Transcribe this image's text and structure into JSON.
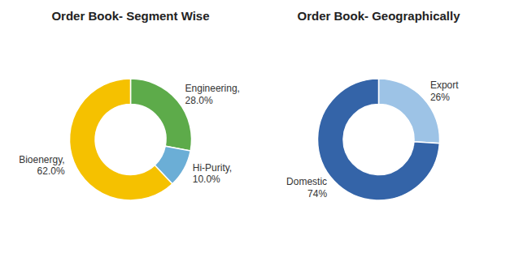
{
  "chart_data": [
    {
      "type": "pie",
      "title": "Order Book- Segment Wise",
      "categories": [
        "Engineering,\n28.0%",
        "Hi-Purity,\n10.0%",
        "Bioenergy,\n62.0%"
      ],
      "values": [
        28.0,
        10.0,
        62.0
      ],
      "colors": [
        "#5dab4a",
        "#6baed6",
        "#f5c100"
      ]
    },
    {
      "type": "pie",
      "title": "Order Book- Geographically",
      "categories": [
        "Export\n26%",
        "Domestic\n74%"
      ],
      "values": [
        26,
        74
      ],
      "colors": [
        "#9dc3e6",
        "#3464a8"
      ]
    }
  ]
}
